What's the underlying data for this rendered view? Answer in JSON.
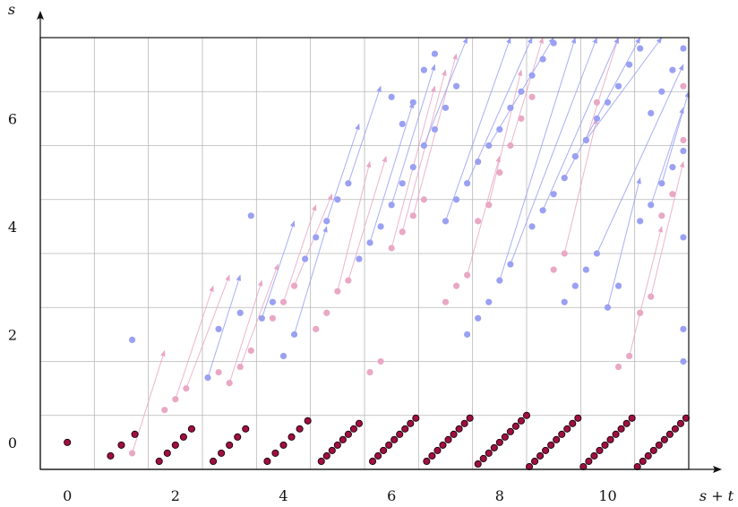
{
  "chart_data": {
    "type": "scatter",
    "title": "",
    "xlabel": "s + t",
    "ylabel": "s",
    "xlim": [
      -0.5,
      11.5
    ],
    "ylim": [
      -0.5,
      7.5
    ],
    "x_ticks": [
      0,
      2,
      4,
      6,
      8,
      10
    ],
    "x_tick_labels": [
      "0",
      "2",
      "4",
      "6",
      "8",
      "10"
    ],
    "y_ticks": [
      0,
      2,
      4,
      6
    ],
    "y_tick_labels": [
      "0",
      "2",
      "4",
      "6"
    ],
    "grid": true,
    "legend": "none",
    "colors": {
      "row0_dot": "#a0103c",
      "pink": "#e9a8c4",
      "blue": "#9aa0f2",
      "grid": "#b8b8b8",
      "frame": "#111111"
    },
    "series": [
      {
        "role": "row0_dots",
        "color": "#a0103c",
        "points": [
          [
            0.0,
            0.0
          ],
          [
            0.8,
            -0.25
          ],
          [
            1.0,
            -0.05
          ],
          [
            1.25,
            0.15
          ],
          [
            1.7,
            -0.35
          ],
          [
            1.85,
            -0.2
          ],
          [
            2.0,
            -0.05
          ],
          [
            2.15,
            0.1
          ],
          [
            2.3,
            0.25
          ],
          [
            2.7,
            -0.35
          ],
          [
            2.85,
            -0.2
          ],
          [
            3.0,
            -0.05
          ],
          [
            3.15,
            0.1
          ],
          [
            3.3,
            0.25
          ],
          [
            3.7,
            -0.35
          ],
          [
            3.85,
            -0.2
          ],
          [
            4.0,
            -0.05
          ],
          [
            4.15,
            0.1
          ],
          [
            4.3,
            0.25
          ],
          [
            4.45,
            0.4
          ],
          [
            4.7,
            -0.35
          ],
          [
            4.8,
            -0.25
          ],
          [
            4.9,
            -0.15
          ],
          [
            5.0,
            -0.05
          ],
          [
            5.1,
            0.05
          ],
          [
            5.2,
            0.15
          ],
          [
            5.3,
            0.25
          ],
          [
            5.4,
            0.35
          ],
          [
            5.65,
            -0.35
          ],
          [
            5.75,
            -0.25
          ],
          [
            5.85,
            -0.15
          ],
          [
            5.95,
            -0.05
          ],
          [
            6.05,
            0.05
          ],
          [
            6.15,
            0.15
          ],
          [
            6.25,
            0.25
          ],
          [
            6.35,
            0.35
          ],
          [
            6.45,
            0.45
          ],
          [
            6.65,
            -0.35
          ],
          [
            6.75,
            -0.25
          ],
          [
            6.85,
            -0.15
          ],
          [
            6.95,
            -0.05
          ],
          [
            7.05,
            0.05
          ],
          [
            7.15,
            0.15
          ],
          [
            7.25,
            0.25
          ],
          [
            7.35,
            0.35
          ],
          [
            7.45,
            0.45
          ],
          [
            7.6,
            -0.4
          ],
          [
            7.7,
            -0.3
          ],
          [
            7.8,
            -0.2
          ],
          [
            7.9,
            -0.1
          ],
          [
            8.0,
            0.0
          ],
          [
            8.1,
            0.1
          ],
          [
            8.2,
            0.2
          ],
          [
            8.3,
            0.3
          ],
          [
            8.4,
            0.4
          ],
          [
            8.5,
            0.5
          ],
          [
            8.55,
            -0.45
          ],
          [
            8.65,
            -0.35
          ],
          [
            8.75,
            -0.25
          ],
          [
            8.85,
            -0.15
          ],
          [
            8.95,
            -0.05
          ],
          [
            9.05,
            0.05
          ],
          [
            9.15,
            0.15
          ],
          [
            9.25,
            0.25
          ],
          [
            9.35,
            0.35
          ],
          [
            9.45,
            0.45
          ],
          [
            9.55,
            -0.45
          ],
          [
            9.65,
            -0.35
          ],
          [
            9.75,
            -0.25
          ],
          [
            9.85,
            -0.15
          ],
          [
            9.95,
            -0.05
          ],
          [
            10.05,
            0.05
          ],
          [
            10.15,
            0.15
          ],
          [
            10.25,
            0.25
          ],
          [
            10.35,
            0.35
          ],
          [
            10.45,
            0.45
          ],
          [
            10.55,
            -0.45
          ],
          [
            10.65,
            -0.35
          ],
          [
            10.75,
            -0.25
          ],
          [
            10.85,
            -0.15
          ],
          [
            10.95,
            -0.05
          ],
          [
            11.05,
            0.05
          ],
          [
            11.15,
            0.15
          ],
          [
            11.25,
            0.25
          ],
          [
            11.35,
            0.35
          ],
          [
            11.45,
            0.45
          ]
        ]
      },
      {
        "role": "pink_points",
        "color": "#e9a8c4",
        "points": [
          [
            1.2,
            -0.2
          ],
          [
            1.8,
            0.6
          ],
          [
            2.0,
            0.8
          ],
          [
            2.2,
            1.0
          ],
          [
            2.8,
            1.3
          ],
          [
            3.0,
            1.1
          ],
          [
            3.2,
            1.4
          ],
          [
            3.4,
            1.7
          ],
          [
            3.8,
            2.3
          ],
          [
            4.0,
            2.6
          ],
          [
            4.2,
            2.9
          ],
          [
            4.6,
            2.1
          ],
          [
            4.8,
            2.4
          ],
          [
            5.0,
            2.8
          ],
          [
            5.2,
            3.0
          ],
          [
            5.6,
            1.3
          ],
          [
            5.8,
            1.5
          ],
          [
            6.0,
            3.6
          ],
          [
            6.2,
            3.9
          ],
          [
            6.4,
            4.2
          ],
          [
            6.6,
            4.5
          ],
          [
            7.0,
            2.6
          ],
          [
            7.2,
            2.9
          ],
          [
            7.4,
            3.1
          ],
          [
            7.6,
            4.1
          ],
          [
            7.8,
            4.4
          ],
          [
            8.0,
            5.0
          ],
          [
            8.2,
            5.5
          ],
          [
            8.4,
            6.0
          ],
          [
            8.6,
            6.4
          ],
          [
            9.0,
            3.2
          ],
          [
            9.2,
            3.5
          ],
          [
            9.4,
            5.3
          ],
          [
            9.6,
            5.6
          ],
          [
            9.8,
            6.3
          ],
          [
            10.2,
            1.4
          ],
          [
            10.4,
            1.6
          ],
          [
            10.6,
            2.4
          ],
          [
            10.8,
            2.7
          ],
          [
            11.0,
            4.2
          ],
          [
            11.2,
            4.6
          ],
          [
            11.4,
            5.6
          ],
          [
            11.4,
            6.6
          ]
        ]
      },
      {
        "role": "blue_points",
        "color": "#9aa0f2",
        "points": [
          [
            1.2,
            1.9
          ],
          [
            2.6,
            1.2
          ],
          [
            2.8,
            2.1
          ],
          [
            3.2,
            2.4
          ],
          [
            3.6,
            2.3
          ],
          [
            3.8,
            2.6
          ],
          [
            3.4,
            4.2
          ],
          [
            4.0,
            1.6
          ],
          [
            4.2,
            2.0
          ],
          [
            4.4,
            3.4
          ],
          [
            4.6,
            3.8
          ],
          [
            4.8,
            4.1
          ],
          [
            5.0,
            4.5
          ],
          [
            5.2,
            4.8
          ],
          [
            5.4,
            3.4
          ],
          [
            5.6,
            3.7
          ],
          [
            5.8,
            4.0
          ],
          [
            6.0,
            4.4
          ],
          [
            6.2,
            4.8
          ],
          [
            6.4,
            5.1
          ],
          [
            6.6,
            5.5
          ],
          [
            6.8,
            5.8
          ],
          [
            7.0,
            6.2
          ],
          [
            7.2,
            6.6
          ],
          [
            6.0,
            6.4
          ],
          [
            6.2,
            5.9
          ],
          [
            6.4,
            6.3
          ],
          [
            6.6,
            6.9
          ],
          [
            6.8,
            7.2
          ],
          [
            7.0,
            4.1
          ],
          [
            7.2,
            4.5
          ],
          [
            7.4,
            4.8
          ],
          [
            7.6,
            5.2
          ],
          [
            7.8,
            5.5
          ],
          [
            8.0,
            5.8
          ],
          [
            8.2,
            6.2
          ],
          [
            8.4,
            6.5
          ],
          [
            8.6,
            6.8
          ],
          [
            8.8,
            7.1
          ],
          [
            9.0,
            7.4
          ],
          [
            7.4,
            2.0
          ],
          [
            7.6,
            2.3
          ],
          [
            7.8,
            2.6
          ],
          [
            8.0,
            3.0
          ],
          [
            8.2,
            3.3
          ],
          [
            8.6,
            4.0
          ],
          [
            8.8,
            4.3
          ],
          [
            9.0,
            4.6
          ],
          [
            9.2,
            4.9
          ],
          [
            9.4,
            5.3
          ],
          [
            9.6,
            5.6
          ],
          [
            9.8,
            6.0
          ],
          [
            10.0,
            6.3
          ],
          [
            10.2,
            6.6
          ],
          [
            10.4,
            7.0
          ],
          [
            10.6,
            7.3
          ],
          [
            9.2,
            2.6
          ],
          [
            9.4,
            2.9
          ],
          [
            9.6,
            3.2
          ],
          [
            9.8,
            3.5
          ],
          [
            10.0,
            2.5
          ],
          [
            10.2,
            2.9
          ],
          [
            10.6,
            4.1
          ],
          [
            10.8,
            4.4
          ],
          [
            11.0,
            4.8
          ],
          [
            11.2,
            5.1
          ],
          [
            11.4,
            5.4
          ],
          [
            10.8,
            6.1
          ],
          [
            11.0,
            6.5
          ],
          [
            11.2,
            6.9
          ],
          [
            11.4,
            7.3
          ],
          [
            11.4,
            1.5
          ],
          [
            11.4,
            2.1
          ],
          [
            11.4,
            3.8
          ]
        ]
      }
    ],
    "arrows": {
      "pink": [
        [
          1.2,
          -0.2,
          1.8,
          1.7
        ],
        [
          2.0,
          0.8,
          2.7,
          2.9
        ],
        [
          2.2,
          1.0,
          3.0,
          3.1
        ],
        [
          3.0,
          1.1,
          3.6,
          3.0
        ],
        [
          3.2,
          1.4,
          3.9,
          3.3
        ],
        [
          4.0,
          2.6,
          4.6,
          4.4
        ],
        [
          4.2,
          2.9,
          4.9,
          4.6
        ],
        [
          5.0,
          2.8,
          5.6,
          5.2
        ],
        [
          5.2,
          3.0,
          5.9,
          5.3
        ],
        [
          6.0,
          3.6,
          6.8,
          6.6
        ],
        [
          6.2,
          3.9,
          7.0,
          6.9
        ],
        [
          6.4,
          4.2,
          7.2,
          7.2
        ],
        [
          7.4,
          3.1,
          8.0,
          5.3
        ],
        [
          7.8,
          4.4,
          8.4,
          6.9
        ],
        [
          8.2,
          5.5,
          8.8,
          7.5
        ],
        [
          9.2,
          3.5,
          9.8,
          6.0
        ],
        [
          9.6,
          5.6,
          10.2,
          7.5
        ],
        [
          10.4,
          1.6,
          11.0,
          4.0
        ],
        [
          10.8,
          2.7,
          11.4,
          5.2
        ]
      ],
      "blue": [
        [
          2.6,
          1.2,
          3.2,
          3.1
        ],
        [
          3.6,
          2.3,
          4.2,
          4.1
        ],
        [
          4.2,
          2.0,
          4.8,
          4.0
        ],
        [
          4.8,
          4.1,
          5.4,
          5.9
        ],
        [
          5.2,
          4.8,
          5.8,
          6.6
        ],
        [
          5.6,
          3.7,
          6.4,
          6.3
        ],
        [
          6.0,
          4.4,
          6.8,
          7.0
        ],
        [
          6.6,
          5.5,
          7.4,
          7.5
        ],
        [
          7.0,
          4.1,
          8.2,
          7.5
        ],
        [
          7.4,
          4.8,
          8.6,
          7.5
        ],
        [
          7.8,
          5.5,
          9.0,
          7.5
        ],
        [
          8.0,
          3.0,
          9.4,
          7.5
        ],
        [
          8.2,
          3.3,
          9.8,
          7.5
        ],
        [
          8.8,
          4.3,
          10.2,
          7.5
        ],
        [
          9.2,
          4.9,
          10.6,
          7.5
        ],
        [
          9.6,
          5.6,
          11.0,
          7.5
        ],
        [
          9.8,
          3.5,
          11.4,
          7.0
        ],
        [
          10.0,
          2.5,
          10.6,
          4.9
        ],
        [
          10.8,
          4.4,
          11.4,
          6.2
        ],
        [
          11.0,
          4.8,
          11.5,
          6.5
        ]
      ]
    }
  }
}
